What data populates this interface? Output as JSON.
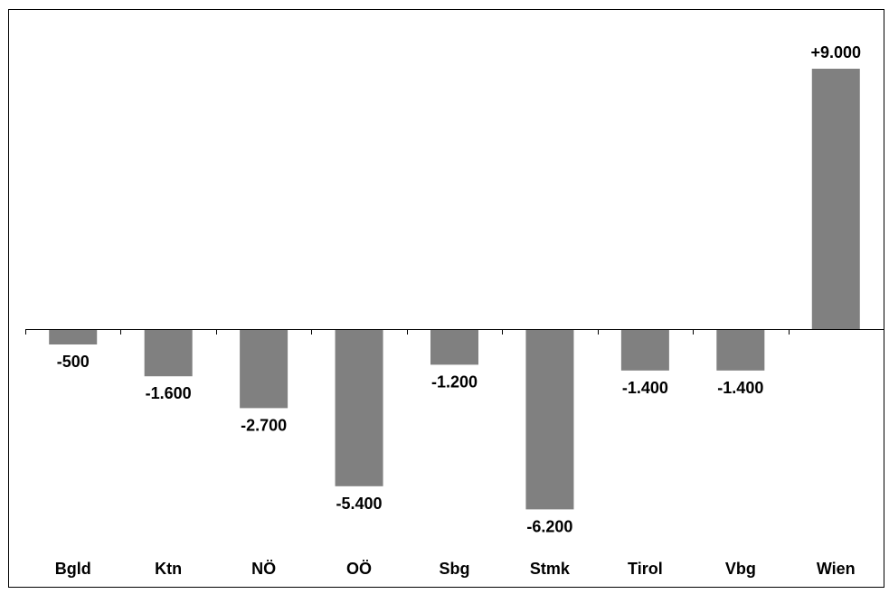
{
  "chart_data": {
    "type": "bar",
    "title": "",
    "xlabel": "",
    "ylabel": "",
    "categories": [
      "Bgld",
      "Ktn",
      "NÖ",
      "OÖ",
      "Sbg",
      "Stmk",
      "Tirol",
      "Vbg",
      "Wien"
    ],
    "values": [
      -500,
      -1600,
      -2700,
      -5400,
      -1200,
      -6200,
      -1400,
      -1400,
      9000
    ],
    "value_labels": [
      "-500",
      "-1.600",
      "-2.700",
      "-5.400",
      "-1.200",
      "-6.200",
      "-1.400",
      "-1.400",
      "+9.000"
    ],
    "bar_color": "#808080",
    "grid": false,
    "legend": "none"
  }
}
